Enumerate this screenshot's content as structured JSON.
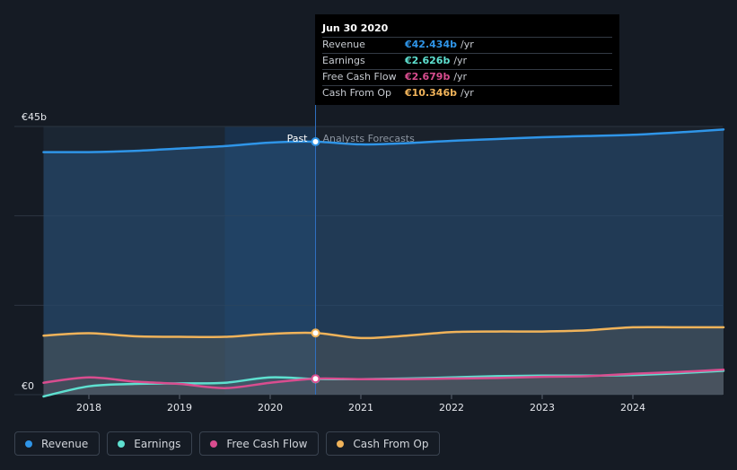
{
  "tooltip": {
    "date": "Jun 30 2020",
    "rows": [
      {
        "label": "Revenue",
        "value": "€42.434b",
        "unit": "/yr",
        "color": "#2f95e8"
      },
      {
        "label": "Earnings",
        "value": "€2.626b",
        "unit": "/yr",
        "color": "#5ee0d0"
      },
      {
        "label": "Free Cash Flow",
        "value": "€2.679b",
        "unit": "/yr",
        "color": "#d94d8f"
      },
      {
        "label": "Cash From Op",
        "value": "€10.346b",
        "unit": "/yr",
        "color": "#f0b35a"
      }
    ]
  },
  "chart_data": {
    "type": "line",
    "y_top_label": "€45b",
    "y_bottom_label": "€0",
    "past_label": "Past",
    "forecast_label": "Analysts Forecasts",
    "ylim": [
      0,
      45
    ],
    "x_ticks": [
      "2018",
      "2019",
      "2020",
      "2021",
      "2022",
      "2023",
      "2024"
    ],
    "grid": true,
    "series": [
      {
        "name": "Revenue",
        "color": "#2f95e8",
        "x": [
          2017.5,
          2018.0,
          2018.5,
          2019.0,
          2019.5,
          2020.0,
          2020.5,
          2021.0,
          2021.5,
          2022.0,
          2022.5,
          2023.0,
          2023.5,
          2024.0,
          2024.5,
          2025.0
        ],
        "y": [
          40.7,
          40.7,
          40.9,
          41.3,
          41.7,
          42.3,
          42.434,
          42.0,
          42.2,
          42.6,
          42.9,
          43.2,
          43.4,
          43.6,
          44.0,
          44.5
        ]
      },
      {
        "name": "Earnings",
        "color": "#5ee0d0",
        "x": [
          2017.5,
          2018.0,
          2018.5,
          2019.0,
          2019.5,
          2020.0,
          2020.5,
          2021.0,
          2021.5,
          2022.0,
          2022.5,
          2023.0,
          2023.5,
          2024.0,
          2024.5,
          2025.0
        ],
        "y": [
          -0.3,
          1.4,
          1.8,
          1.9,
          2.0,
          2.9,
          2.626,
          2.6,
          2.7,
          2.9,
          3.1,
          3.2,
          3.2,
          3.3,
          3.6,
          4.0
        ]
      },
      {
        "name": "Free Cash Flow",
        "color": "#d94d8f",
        "x": [
          2017.5,
          2018.0,
          2018.5,
          2019.0,
          2019.5,
          2020.0,
          2020.5,
          2021.0,
          2021.5,
          2022.0,
          2022.5,
          2023.0,
          2023.5,
          2024.0,
          2024.5,
          2025.0
        ],
        "y": [
          2.0,
          2.9,
          2.2,
          1.8,
          1.1,
          2.0,
          2.679,
          2.6,
          2.6,
          2.7,
          2.8,
          3.0,
          3.1,
          3.5,
          3.8,
          4.2
        ]
      },
      {
        "name": "Cash From Op",
        "color": "#f0b35a",
        "x": [
          2017.5,
          2018.0,
          2018.5,
          2019.0,
          2019.5,
          2020.0,
          2020.5,
          2021.0,
          2021.5,
          2022.0,
          2022.5,
          2023.0,
          2023.5,
          2024.0,
          2024.5,
          2025.0
        ],
        "y": [
          9.9,
          10.3,
          9.8,
          9.7,
          9.7,
          10.2,
          10.346,
          9.5,
          9.9,
          10.5,
          10.6,
          10.6,
          10.8,
          11.3,
          11.3,
          11.3
        ]
      }
    ],
    "highlight_x": 2020.5
  },
  "legend": [
    {
      "label": "Revenue",
      "color": "#2f95e8"
    },
    {
      "label": "Earnings",
      "color": "#5ee0d0"
    },
    {
      "label": "Free Cash Flow",
      "color": "#d94d8f"
    },
    {
      "label": "Cash From Op",
      "color": "#f0b35a"
    }
  ]
}
